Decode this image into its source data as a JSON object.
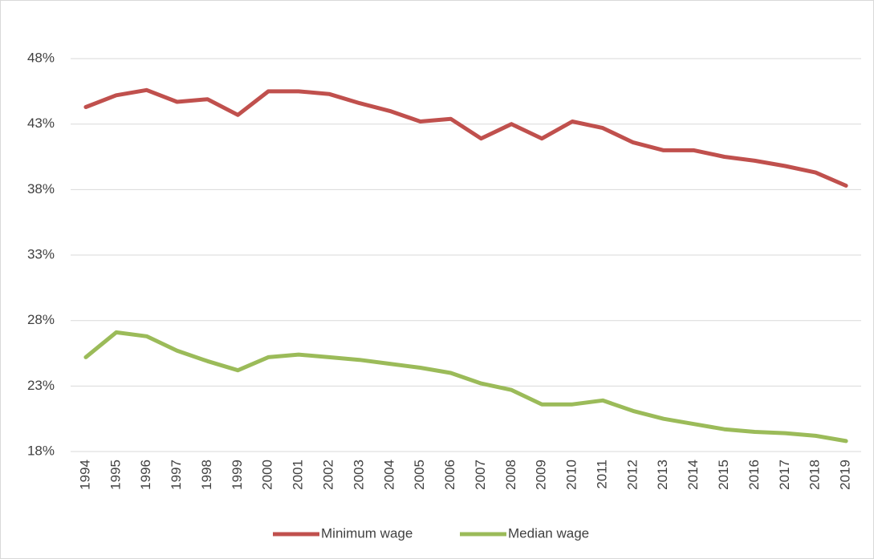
{
  "chart_data": {
    "type": "line",
    "categories": [
      "1994",
      "1995",
      "1996",
      "1997",
      "1998",
      "1999",
      "2000",
      "2001",
      "2002",
      "2003",
      "2004",
      "2005",
      "2006",
      "2007",
      "2008",
      "2009",
      "2010",
      "2011",
      "2012",
      "2013",
      "2014",
      "2015",
      "2016",
      "2017",
      "2018",
      "2019"
    ],
    "series": [
      {
        "name": "Minimum wage",
        "color": "#c0504d",
        "values": [
          44.3,
          45.2,
          45.6,
          44.7,
          44.9,
          43.7,
          45.5,
          45.5,
          45.3,
          44.6,
          44.0,
          43.2,
          43.4,
          41.9,
          43.0,
          41.9,
          43.2,
          42.7,
          41.6,
          41.0,
          41.0,
          40.5,
          40.2,
          39.8,
          39.3,
          38.3
        ]
      },
      {
        "name": "Median wage",
        "color": "#9bbb59",
        "values": [
          25.2,
          27.1,
          26.8,
          25.7,
          24.9,
          24.2,
          25.2,
          25.4,
          25.2,
          25.0,
          24.7,
          24.4,
          24.0,
          23.2,
          22.7,
          21.6,
          21.6,
          21.9,
          21.1,
          20.5,
          20.1,
          19.7,
          19.5,
          19.4,
          19.2,
          18.8
        ]
      }
    ],
    "ylim": [
      18,
      50
    ],
    "yticks": [
      {
        "value": 18,
        "label": "18%"
      },
      {
        "value": 23,
        "label": "23%"
      },
      {
        "value": 28,
        "label": "28%"
      },
      {
        "value": 33,
        "label": "33%"
      },
      {
        "value": 38,
        "label": "38%"
      },
      {
        "value": 43,
        "label": "43%"
      },
      {
        "value": 48,
        "label": "48%"
      }
    ],
    "grid": true,
    "legend": "bottom"
  }
}
